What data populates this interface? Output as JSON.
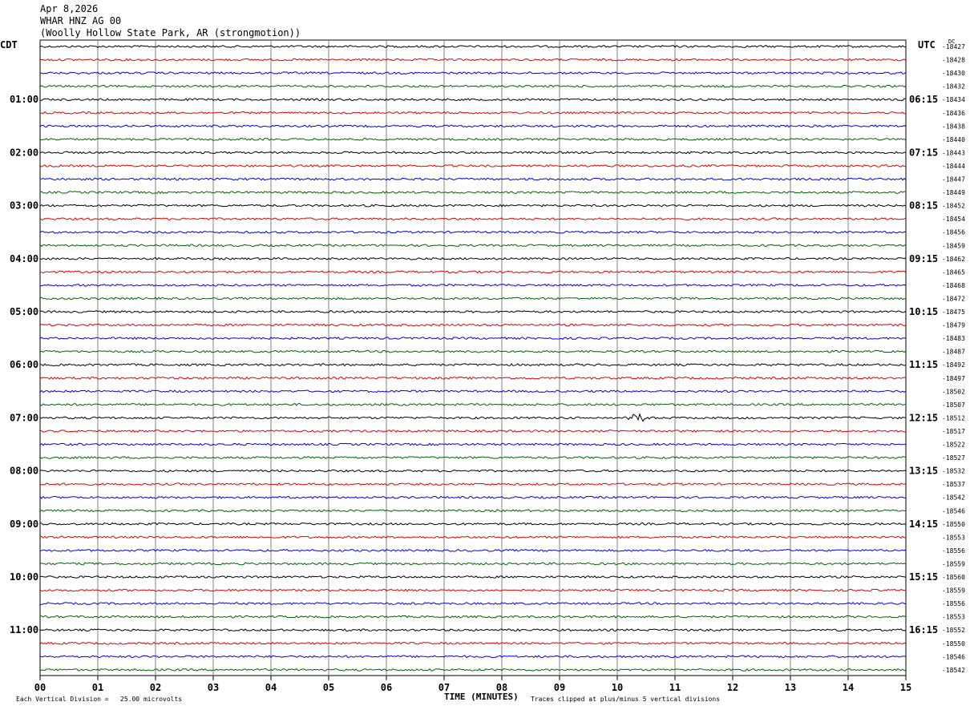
{
  "header": {
    "date": "Apr 8,2026",
    "station": "WHAR HNZ AG 00",
    "location": "(Woolly Hollow State Park, AR (strongmotion))"
  },
  "left_timezone": "CDT",
  "right_timezone": "UTC",
  "corner_label": "DC",
  "footer": {
    "scale_text": "Each Vertical Division =   25.00 microvolts",
    "clip_text": "Traces clipped at plus/minus 5 vertical divisions"
  },
  "colors": {
    "black": "#000000",
    "red": "#e00000",
    "blue": "#0000e0",
    "green": "#006400"
  },
  "chart_data": {
    "type": "line",
    "title": "WHAR HNZ AG 00",
    "xlabel": "TIME (MINUTES)",
    "xlim": [
      0,
      15
    ],
    "x_ticks": [
      "00",
      "01",
      "02",
      "03",
      "04",
      "05",
      "06",
      "07",
      "08",
      "09",
      "10",
      "11",
      "12",
      "13",
      "14",
      "15"
    ],
    "grid": "vertical lines every minute",
    "left_hour_labels": [
      "01:00",
      "02:00",
      "03:00",
      "04:00",
      "05:00",
      "06:00",
      "07:00",
      "08:00",
      "09:00",
      "10:00",
      "11:00"
    ],
    "right_hour_labels": [
      "06:15",
      "07:15",
      "08:15",
      "09:15",
      "10:15",
      "11:15",
      "12:15",
      "13:15",
      "14:15",
      "15:15",
      "16:15"
    ],
    "trace_color_cycle": [
      "black",
      "red",
      "blue",
      "green"
    ],
    "trace_offsets": [
      -18427,
      -18428,
      -18430,
      -18432,
      -18434,
      -18436,
      -18438,
      -18440,
      -18443,
      -18444,
      -18447,
      -18449,
      -18452,
      -18454,
      -18456,
      -18459,
      -18462,
      -18465,
      -18468,
      -18472,
      -18475,
      -18479,
      -18483,
      -18487,
      -18492,
      -18497,
      -18502,
      -18507,
      -18512,
      -18517,
      -18522,
      -18527,
      -18532,
      -18537,
      -18542,
      -18546,
      -18550,
      -18553,
      -18556,
      -18559,
      -18560,
      -18559,
      -18556,
      -18553,
      -18552,
      -18550,
      -18546,
      -18542
    ],
    "events": [
      {
        "trace_index": 28,
        "minute": 10.35,
        "amplitude": "small"
      }
    ]
  }
}
